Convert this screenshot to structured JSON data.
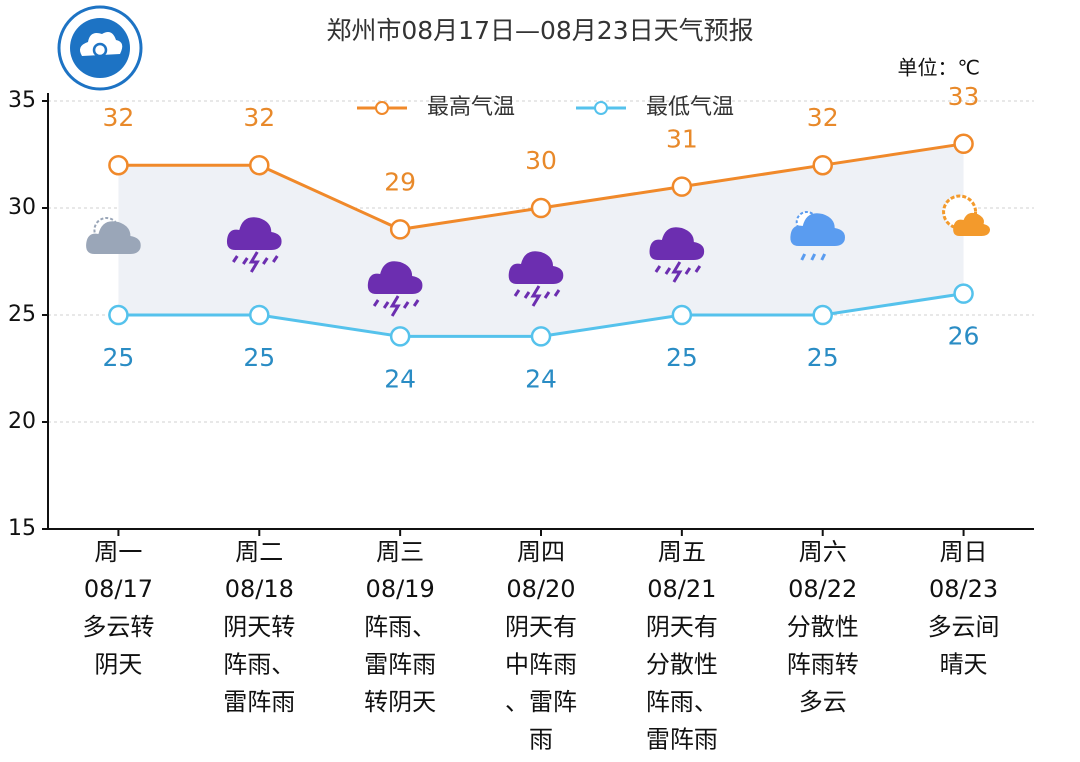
{
  "chart_data": {
    "type": "line",
    "title": "郑州市08月17日—08月23日天气预报",
    "unit_label": "单位：℃",
    "categories": [
      "周一",
      "周二",
      "周三",
      "周四",
      "周五",
      "周六",
      "周日"
    ],
    "dates": [
      "08/17",
      "08/18",
      "08/19",
      "08/20",
      "08/21",
      "08/22",
      "08/23"
    ],
    "descriptions": [
      "多云转阴天",
      "阴天转阵雨、雷阵雨",
      "阵雨、雷阵雨转阴天",
      "阴天有中阵雨、雷阵雨",
      "阴天有分散性阵雨、雷阵雨",
      "分散性阵雨转多云",
      "多云间晴天"
    ],
    "series": [
      {
        "name": "最高气温",
        "color": "#f0892a",
        "label_color": "#e8892a",
        "values": [
          32,
          32,
          29,
          30,
          31,
          32,
          33
        ]
      },
      {
        "name": "最低气温",
        "color": "#55c2ec",
        "label_color": "#2a8cc4",
        "values": [
          25,
          25,
          24,
          24,
          25,
          25,
          26
        ]
      }
    ],
    "ylim": [
      15,
      35
    ],
    "yticks": [
      15,
      20,
      25,
      30,
      35
    ],
    "grid": true
  }
}
